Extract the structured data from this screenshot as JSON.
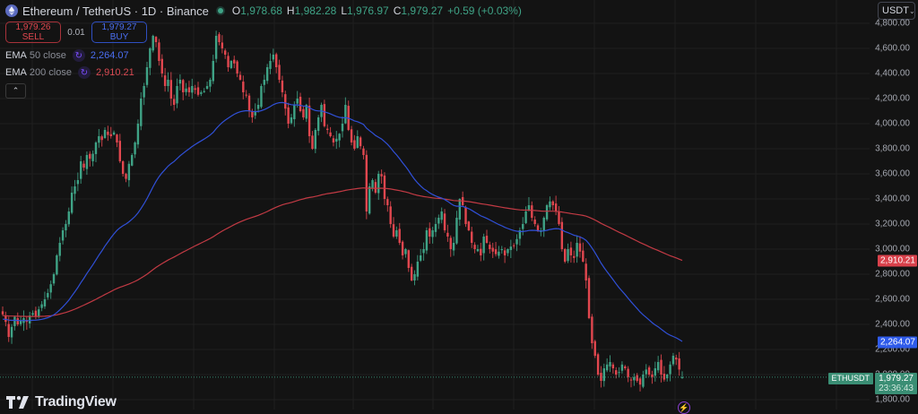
{
  "header": {
    "title": "Ethereum / TetherUS · 1D · Binance",
    "symbol_icon": "ethereum-icon",
    "status_icon": "market-open-dot-icon",
    "open_label": "O",
    "open": "1,978.68",
    "high_label": "H",
    "high": "1,982.28",
    "low_label": "L",
    "low": "1,976.97",
    "close_label": "C",
    "close": "1,979.27",
    "change": "+0.59 (+0.03%)"
  },
  "trade": {
    "sell_price": "1,979.26",
    "sell_label": "SELL",
    "spread": "0.01",
    "buy_price": "1,979.27",
    "buy_label": "BUY"
  },
  "indicators": [
    {
      "name": "EMA",
      "params": "50 close",
      "icon": "refresh-icon",
      "value": "2,264.07",
      "color": "#4a6ef0"
    },
    {
      "name": "EMA",
      "params": "200 close",
      "icon": "refresh-icon",
      "value": "2,910.21",
      "color": "#d94a52"
    }
  ],
  "collapse_icon": "chevron-up-icon",
  "currency": {
    "label": "USDT",
    "icon": "chevron-down-icon"
  },
  "y_axis": {
    "labels": [
      "4,800.00",
      "4,600.00",
      "4,400.00",
      "4,200.00",
      "4,000.00",
      "3,800.00",
      "3,600.00",
      "3,400.00",
      "3,200.00",
      "3,000.00",
      "2,800.00",
      "2,600.00",
      "2,400.00",
      "2,200.00",
      "2,000.00",
      "1,800.00"
    ]
  },
  "price_tags": {
    "ema200": "2,910.21",
    "ema50": "2,264.07",
    "last_symbol": "ETHUSDT",
    "last_price": "1,979.27",
    "countdown": "23:36:43"
  },
  "colors": {
    "background": "#131313",
    "grid": "#1f1f1f",
    "up": "#3fa386",
    "down": "#e2474f",
    "ema50": "#3050d8",
    "ema200": "#c23a44"
  },
  "branding": {
    "logo_text": "TradingView",
    "logo_icon": "tradingview-logo-icon"
  },
  "chart_data": {
    "type": "candlestick",
    "title": "Ethereum / TetherUS · 1D · Binance",
    "xlabel": "",
    "ylabel": "USDT",
    "ylim": [
      1760,
      4820
    ],
    "grid": true,
    "legend": [
      "EMA 50 close",
      "EMA 200 close"
    ],
    "waypoints_close": [
      2480,
      2420,
      2300,
      2380,
      2460,
      2400,
      2430,
      2450,
      2420,
      2470,
      2490,
      2460,
      2520,
      2560,
      2600,
      2650,
      2720,
      2800,
      2950,
      3050,
      3150,
      3200,
      3300,
      3450,
      3500,
      3550,
      3700,
      3650,
      3750,
      3720,
      3760,
      3850,
      3900,
      3870,
      3950,
      3910,
      3900,
      3930,
      3850,
      3700,
      3600,
      3560,
      3680,
      3750,
      3850,
      4000,
      4200,
      4300,
      4450,
      4600,
      4700,
      4650,
      4500,
      4400,
      4300,
      4350,
      4200,
      4150,
      4300,
      4350,
      4250,
      4280,
      4250,
      4300,
      4270,
      4230,
      4250,
      4260,
      4300,
      4350,
      4500,
      4700,
      4650,
      4600,
      4550,
      4450,
      4500,
      4480,
      4400,
      4350,
      4250,
      4230,
      4100,
      4050,
      4100,
      4150,
      4300,
      4350,
      4450,
      4500,
      4550,
      4450,
      4350,
      4250,
      4120,
      4000,
      4050,
      4150,
      4200,
      4100,
      4050,
      4150,
      3900,
      3800,
      3950,
      4050,
      4150,
      3980,
      3950,
      3900,
      3850,
      3880,
      3920,
      4000,
      4150,
      3950,
      3850,
      3800,
      3900,
      3820,
      3750,
      3300,
      3500,
      3550,
      3450,
      3600,
      3580,
      3400,
      3350,
      3200,
      3100,
      3150,
      3050,
      2950,
      3000,
      2850,
      2750,
      2800,
      2900,
      2950,
      3000,
      3150,
      3100,
      3150,
      3200,
      3250,
      3300,
      3150,
      3100,
      3000,
      3050,
      3250,
      3400,
      3350,
      3200,
      3150,
      3050,
      3000,
      3000,
      2950,
      3100,
      3050,
      3000,
      2980,
      2960,
      2980,
      3000,
      2950,
      3000,
      3020,
      3030,
      3080,
      3150,
      3200,
      3300,
      3350,
      3250,
      3200,
      3150,
      3150,
      3250,
      3350,
      3380,
      3350,
      3300,
      3200,
      3000,
      2900,
      3000,
      2950,
      2930,
      3050,
      2980,
      2900,
      2750,
      2450,
      2250,
      2150,
      2000,
      1950,
      2050,
      2080,
      2100,
      2050,
      2000,
      2020,
      2080,
      2050,
      1980,
      1960,
      1980,
      1950,
      1920,
      2000,
      2040,
      2000,
      1980,
      2050,
      2100,
      2000,
      1960,
      2000,
      2080,
      2150,
      2120,
      2040,
      1979.27
    ],
    "ema50_last": 2264.07,
    "ema200_last": 2910.21,
    "last_close": 1979.27
  }
}
